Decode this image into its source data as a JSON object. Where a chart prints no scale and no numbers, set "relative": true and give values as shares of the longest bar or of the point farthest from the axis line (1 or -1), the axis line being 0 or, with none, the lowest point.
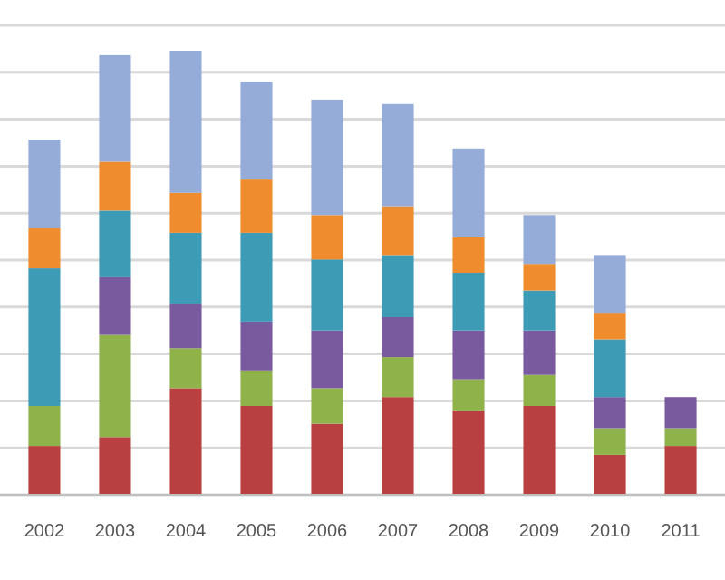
{
  "chart_data": {
    "type": "bar",
    "stacked": true,
    "relative": true,
    "grid": "y",
    "categories": [
      "2002",
      "2003",
      "2004",
      "2005",
      "2006",
      "2007",
      "2008",
      "2009",
      "2010",
      "2011"
    ],
    "series": [
      {
        "color": "#b94040",
        "values": [
          0.11,
          0.13,
          0.24,
          0.2,
          0.16,
          0.22,
          0.19,
          0.2,
          0.09,
          0.11
        ]
      },
      {
        "color": "#8fb34a",
        "values": [
          0.09,
          0.23,
          0.09,
          0.08,
          0.08,
          0.09,
          0.07,
          0.07,
          0.06,
          0.04
        ]
      },
      {
        "color": "#7a5a9e",
        "values": [
          0,
          0.13,
          0.1,
          0.11,
          0.13,
          0.09,
          0.11,
          0.1,
          0.07,
          0.07
        ]
      },
      {
        "color": "#3d9bb6",
        "values": [
          0.31,
          0.15,
          0.16,
          0.2,
          0.16,
          0.14,
          0.13,
          0.09,
          0.13,
          0
        ]
      },
      {
        "color": "#ef8d2e",
        "values": [
          0.09,
          0.11,
          0.09,
          0.12,
          0.1,
          0.11,
          0.08,
          0.06,
          0.06,
          0
        ]
      },
      {
        "color": "#95acd8",
        "values": [
          0.2,
          0.24,
          0.32,
          0.22,
          0.26,
          0.23,
          0.2,
          0.11,
          0.13,
          0
        ]
      }
    ]
  }
}
